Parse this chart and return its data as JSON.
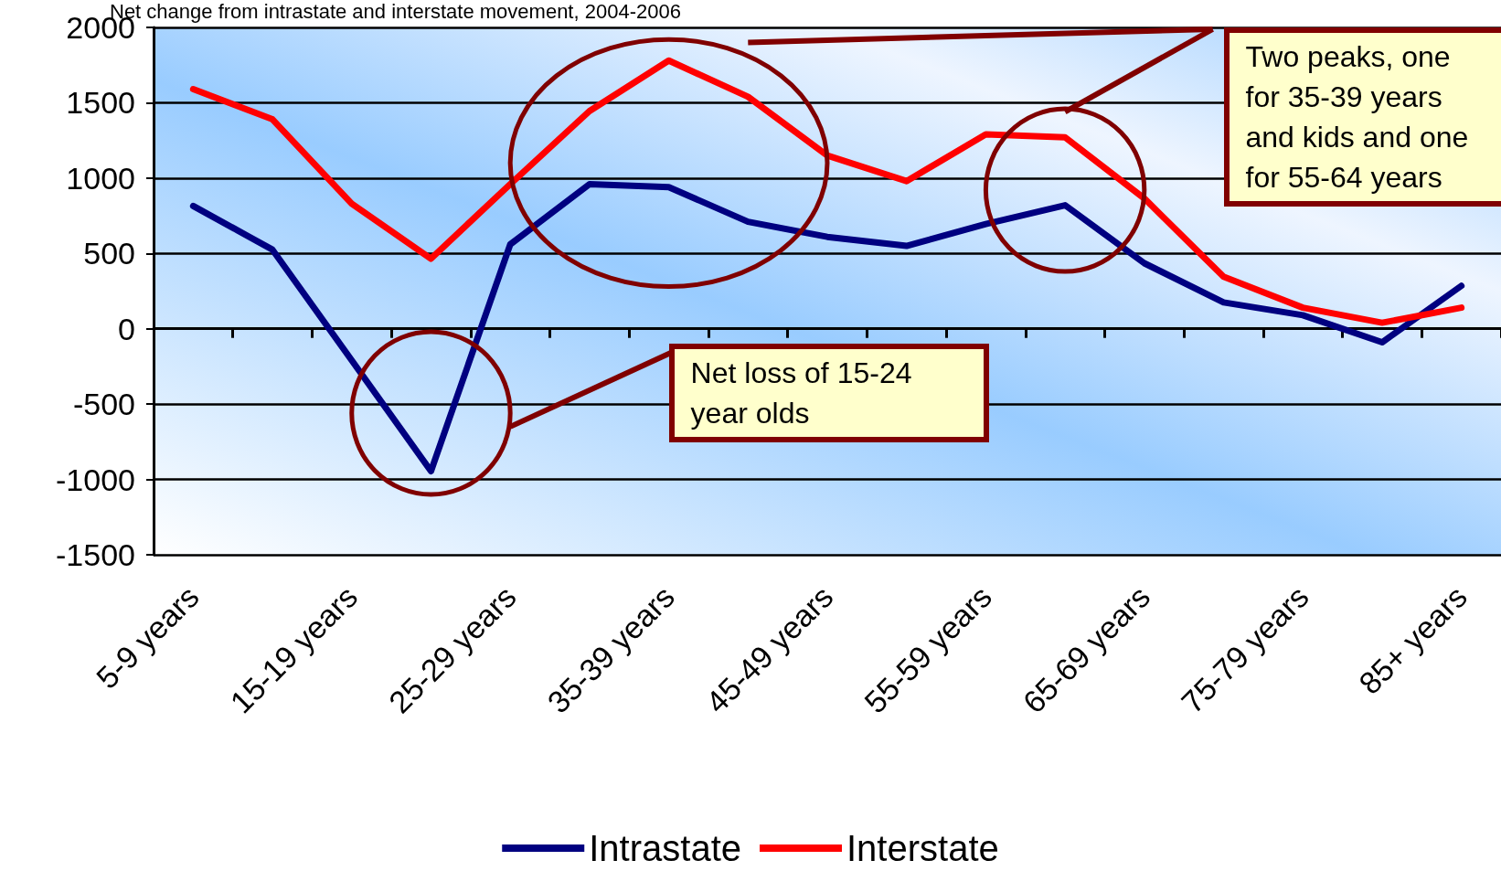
{
  "chart_data": {
    "type": "line",
    "title": "Net change from intrastate and interstate movement, 2004-2006",
    "categories": [
      "5-9 years",
      null,
      "15-19 years",
      null,
      "25-29 years",
      null,
      "35-39 years",
      null,
      "45-49 years",
      null,
      "55-59 years",
      null,
      "65-69 years",
      null,
      "75-79 years",
      null,
      "85+ years"
    ],
    "series": [
      {
        "name": "Intrastate",
        "color": "#000080",
        "values": [
          815,
          525,
          -210,
          -945,
          560,
          960,
          940,
          710,
          610,
          550,
          695,
          820,
          435,
          175,
          90,
          -90,
          285
        ]
      },
      {
        "name": "Interstate",
        "color": "#ff0000",
        "values": [
          1590,
          1390,
          830,
          465,
          960,
          1445,
          1780,
          1540,
          1150,
          980,
          1290,
          1270,
          865,
          345,
          140,
          40,
          140
        ]
      }
    ],
    "ylim": [
      -1500,
      2000
    ],
    "yticks": [
      -1500,
      -1000,
      -500,
      0,
      500,
      1000,
      1500,
      2000
    ],
    "grid": "y",
    "legend": "bottom",
    "marker": "none",
    "line_style": "solid",
    "annotations": [
      "Net loss of 15-24 year olds",
      "Two peaks, one for 35-39 years and kids and one for 55-64 years"
    ]
  }
}
